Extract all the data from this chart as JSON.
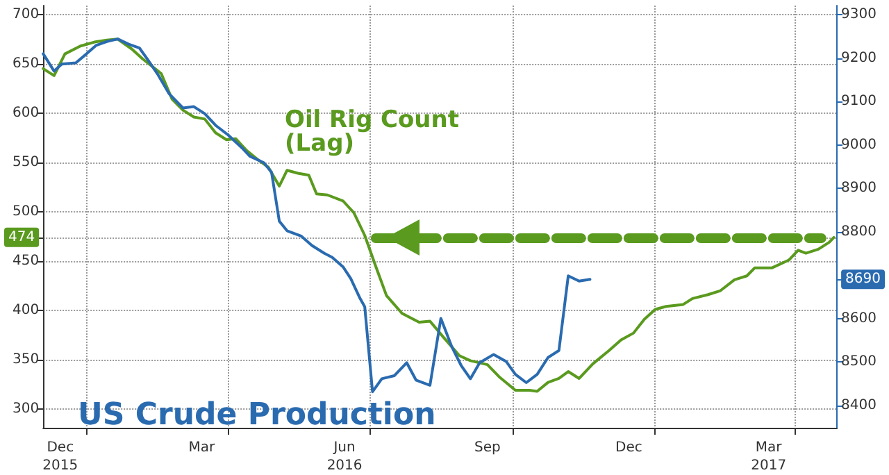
{
  "chart_data": {
    "type": "line",
    "xlim": [
      "2015-12-04",
      "2017-04-28"
    ],
    "xticks": [
      {
        "value": "2015-12-15",
        "label": "Dec\n2015"
      },
      {
        "value": "2016-03-15",
        "label": "Mar"
      },
      {
        "value": "2016-06-15",
        "label": "Jun\n2016"
      },
      {
        "value": "2016-09-15",
        "label": "Sep"
      },
      {
        "value": "2016-12-15",
        "label": "Dec"
      },
      {
        "value": "2017-03-15",
        "label": "Mar\n2017"
      },
      {
        "value": "2016-01-01",
        "label": null
      },
      {
        "value": "2016-04-01",
        "label": null
      },
      {
        "value": "2016-07-01",
        "label": null
      },
      {
        "value": "2016-10-01",
        "label": null
      },
      {
        "value": "2017-01-01",
        "label": null
      },
      {
        "value": "2017-04-01",
        "label": null
      }
    ],
    "ylim": [
      281,
      709
    ],
    "yticks": [
      300,
      350,
      400,
      450,
      500,
      550,
      600,
      650,
      700,
      {
        "value": 474,
        "label": "474"
      }
    ],
    "y2lim": [
      8348,
      9321
    ],
    "y2ticks": [
      8400,
      8500,
      8600,
      8800,
      8900,
      9000,
      9100,
      9200,
      9300,
      {
        "value": 8690,
        "label": "8690"
      }
    ],
    "grid": true,
    "legend": false,
    "ref_lines": [
      {
        "axis": "y",
        "value": 474,
        "color": "#5a9a1e",
        "line_style": "dashed"
      }
    ],
    "series": [
      {
        "name": "Oil Rig Count\n(Lag)",
        "color": "#5a9a1e",
        "x": [
          "2015-12-04",
          "2015-12-11",
          "2015-12-18",
          "2015-12-28",
          "2016-01-06",
          "2016-01-14",
          "2016-01-21",
          "2016-01-30",
          "2016-02-06",
          "2016-02-14",
          "2016-02-18",
          "2016-02-25",
          "2016-03-03",
          "2016-03-10",
          "2016-03-17",
          "2016-03-24",
          "2016-03-31",
          "2016-04-06",
          "2016-04-13",
          "2016-04-20",
          "2016-04-27",
          "2016-05-04",
          "2016-05-09",
          "2016-05-16",
          "2016-05-23",
          "2016-05-28",
          "2016-06-04",
          "2016-06-14",
          "2016-06-21",
          "2016-06-28",
          "2016-07-05",
          "2016-07-12",
          "2016-07-22",
          "2016-08-02",
          "2016-08-09",
          "2016-08-17",
          "2016-08-28",
          "2016-09-04",
          "2016-09-15",
          "2016-09-23",
          "2016-10-03",
          "2016-10-12",
          "2016-10-17",
          "2016-10-24",
          "2016-10-31",
          "2016-11-06",
          "2016-11-13",
          "2016-11-22",
          "2016-12-02",
          "2016-12-10",
          "2016-12-18",
          "2016-12-25",
          "2017-01-01",
          "2017-01-08",
          "2017-01-19",
          "2017-01-25",
          "2017-02-04",
          "2017-02-12",
          "2017-02-21",
          "2017-03-01",
          "2017-03-06",
          "2017-03-17",
          "2017-03-28",
          "2017-04-03",
          "2017-04-08",
          "2017-04-16",
          "2017-04-23",
          "2017-04-26"
        ],
        "values": [
          645,
          638,
          660,
          668,
          672,
          674,
          675,
          665,
          655,
          645,
          640,
          614,
          603,
          596,
          594,
          580,
          573,
          574,
          562,
          553,
          545,
          526,
          542,
          539,
          537,
          518,
          517,
          511,
          499,
          476,
          445,
          415,
          397,
          388,
          389,
          374,
          354,
          349,
          345,
          332,
          319,
          319,
          318,
          327,
          331,
          338,
          331,
          346,
          359,
          370,
          377,
          391,
          401,
          404,
          406,
          412,
          416,
          420,
          431,
          435,
          443,
          443,
          451,
          461,
          458,
          462,
          469,
          474
        ]
      },
      {
        "name": "US Crude Production",
        "color": "#2a6bb0",
        "axis": "y2",
        "x": [
          "2015-12-04",
          "2015-12-11",
          "2015-12-16",
          "2015-12-25",
          "2016-01-01",
          "2016-01-07",
          "2016-01-14",
          "2016-01-21",
          "2016-01-28",
          "2016-02-04",
          "2016-02-09",
          "2016-02-16",
          "2016-02-23",
          "2016-03-03",
          "2016-03-10",
          "2016-03-17",
          "2016-03-24",
          "2016-04-01",
          "2016-04-10",
          "2016-04-15",
          "2016-04-24",
          "2016-04-29",
          "2016-05-04",
          "2016-05-09",
          "2016-05-18",
          "2016-05-25",
          "2016-06-02",
          "2016-06-07",
          "2016-06-14",
          "2016-06-19",
          "2016-06-25",
          "2016-06-28",
          "2016-07-03",
          "2016-07-09",
          "2016-07-17",
          "2016-07-25",
          "2016-07-31",
          "2016-08-09",
          "2016-08-16",
          "2016-08-23",
          "2016-08-29",
          "2016-09-04",
          "2016-09-10",
          "2016-09-19",
          "2016-09-27",
          "2016-10-03",
          "2016-10-10",
          "2016-10-17",
          "2016-10-24",
          "2016-10-31",
          "2016-11-06",
          "2016-11-13",
          "2016-11-20"
        ],
        "values": [
          9210,
          9170,
          9186,
          9189,
          9210,
          9229,
          9238,
          9244,
          9232,
          9223,
          9198,
          9161,
          9118,
          9085,
          9088,
          9072,
          9045,
          9023,
          8993,
          8974,
          8959,
          8937,
          8824,
          8802,
          8790,
          8768,
          8750,
          8741,
          8719,
          8692,
          8646,
          8627,
          8431,
          8461,
          8468,
          8498,
          8458,
          8446,
          8600,
          8535,
          8492,
          8461,
          8498,
          8517,
          8501,
          8471,
          8452,
          8471,
          8510,
          8526,
          8698,
          8686,
          8690
        ]
      }
    ]
  }
}
